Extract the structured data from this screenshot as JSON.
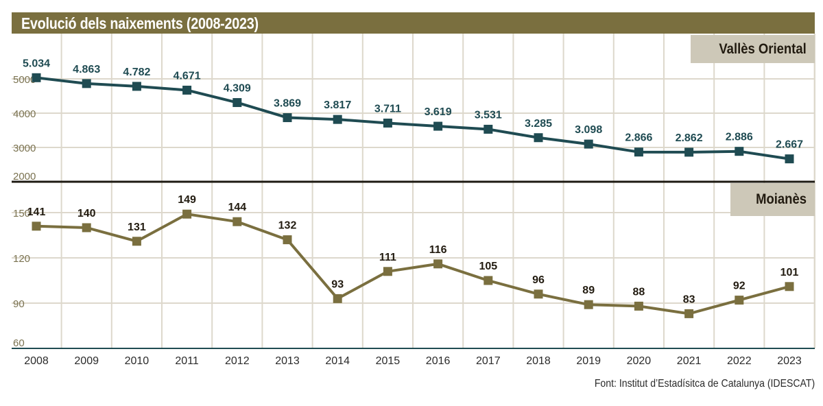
{
  "title": "Evolució dels naixements (2008-2023)",
  "source": "Font: Institut d’Estadísitca de Catalunya (IDESCAT)",
  "colors": {
    "header": "#7a6f3f",
    "panel_label_bg": "#cdc8b8",
    "series_top": "#1f4b52",
    "series_bottom": "#7a6f3f",
    "grid": "#ddd8cc",
    "axis_tick_text": "#7a7250"
  },
  "chart_data": [
    {
      "type": "line",
      "title": "Vallès Oriental",
      "panel_label": "Vallès Oriental",
      "x": [
        "2008",
        "2009",
        "2010",
        "2011",
        "2012",
        "2013",
        "2014",
        "2015",
        "2016",
        "2017",
        "2018",
        "2019",
        "2020",
        "2021",
        "2022",
        "2023"
      ],
      "values": [
        5034,
        4863,
        4782,
        4671,
        4309,
        3869,
        3817,
        3711,
        3619,
        3531,
        3285,
        3098,
        2866,
        2862,
        2886,
        2667
      ],
      "data_labels": [
        "5.034",
        "4.863",
        "4.782",
        "4.671",
        "4.309",
        "3.869",
        "3.817",
        "3.711",
        "3.619",
        "3.531",
        "3.285",
        "3.098",
        "2.866",
        "2.862",
        "2.886",
        "2.667"
      ],
      "yticks": [
        2000,
        3000,
        4000,
        5000
      ],
      "ytick_labels": [
        "2000",
        "3000",
        "4000",
        "5000"
      ],
      "ylim": [
        2000,
        5900
      ],
      "grid": true,
      "xlabel": "",
      "ylabel": ""
    },
    {
      "type": "line",
      "title": "Moianès",
      "panel_label": "Moianès",
      "x": [
        "2008",
        "2009",
        "2010",
        "2011",
        "2012",
        "2013",
        "2014",
        "2015",
        "2016",
        "2017",
        "2018",
        "2019",
        "2020",
        "2021",
        "2022",
        "2023"
      ],
      "values": [
        141,
        140,
        131,
        149,
        144,
        132,
        93,
        111,
        116,
        105,
        96,
        89,
        88,
        83,
        92,
        101
      ],
      "data_labels": [
        "141",
        "140",
        "131",
        "149",
        "144",
        "132",
        "93",
        "111",
        "116",
        "105",
        "96",
        "89",
        "88",
        "83",
        "92",
        "101"
      ],
      "yticks": [
        60,
        90,
        120,
        150
      ],
      "ytick_labels": [
        "60",
        "90",
        "120",
        "150"
      ],
      "ylim": [
        60,
        175
      ],
      "grid": true,
      "xlabel": "",
      "ylabel": ""
    }
  ]
}
